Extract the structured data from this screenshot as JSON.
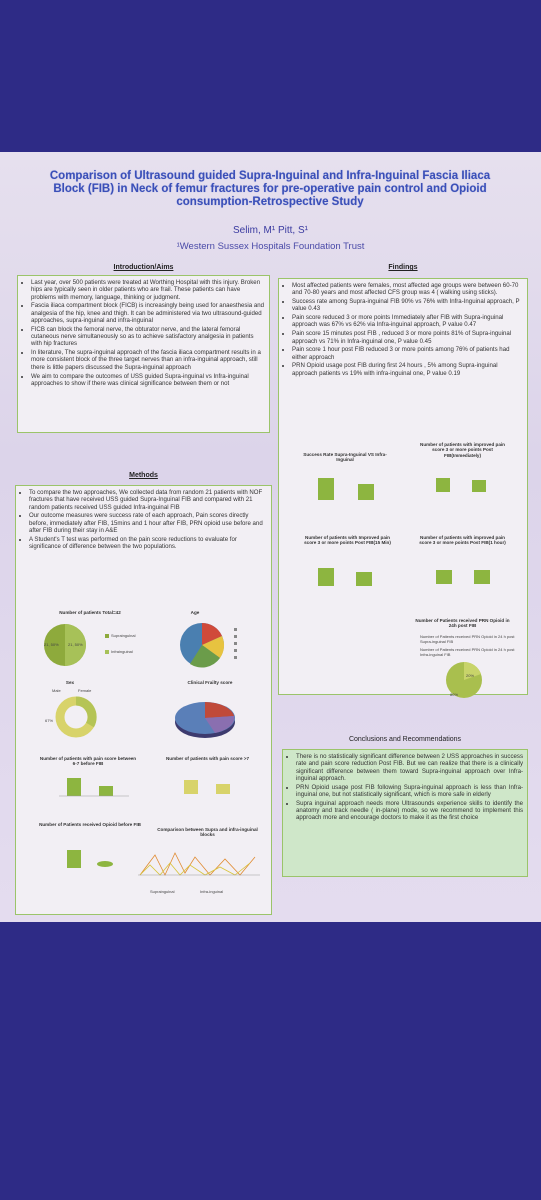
{
  "header": {
    "title": "Comparison of Ultrasound guided Supra-Inguinal and Infra-Inguinal Fascia Iliaca Block (FIB) in Neck of femur fractures for pre-operative pain control and Opioid consumption-Retrospective Study",
    "authors": "Selim, M¹ Pitt, S¹",
    "affiliation": "¹Western Sussex Hospitals Foundation Trust"
  },
  "introduction": {
    "heading": "Introduction/Aims",
    "bullets": [
      "Last year, over 500 patients were treated at Worthing Hospital with this injury. Broken hips are typically seen in older patients who are frail. These patients can have problems with memory, language, thinking or judgment.",
      "Fascia iliaca compartment block (FICB) is increasingly being used for anaesthesia and analgesia of the hip, knee and thigh. It can be administered via two ultrasound-guided approaches, supra-inguinal and infra-inguinal",
      "FICB can block the femoral nerve, the obturator nerve, and the lateral femoral cutaneous nerve simultaneously so as to achieve satisfactory analgesia in patients with hip fractures",
      "In literature, The supra-inguinal approach of the fascia iliaca compartment results in a more consistent block of the three target nerves than an infra-inguinal approach, still there is little papers discussed the Supra-inguinal approach",
      "We aim to compare the outcomes of USS guided Supra-inguinal vs Infra-inguinal approaches to show if there was clinical significance between them or not"
    ]
  },
  "methods": {
    "heading": "Methods",
    "bullets": [
      "To compare the two approaches, We collected data from random 21 patients with NOF fractures that have received USS guided Supra-Inguinal FIB and compared with 21 random patients received USS guided Infra-inguinal FIB",
      "Our outcome measures were success rate of each approach, Pain scores directly before, immediately after FIB, 15mins and 1 hour after FIB, PRN opioid use before and after FIB during their stay in A&E",
      "A Student's T test was performed on the pain score reductions to evaluate for significance of difference between the two populations."
    ],
    "charts": {
      "patients": {
        "title": "Number of patients Total=42",
        "labels": [
          "21, 50%",
          "21, 50%"
        ],
        "legend": [
          "Supraingulnal",
          "Infrainguinal"
        ]
      },
      "age": {
        "title": "Age"
      },
      "sex": {
        "title": "Sex",
        "legend": [
          "Male",
          "Female"
        ],
        "label": "67%"
      },
      "frailty": {
        "title": "Clinical Frailty score"
      },
      "pain67": {
        "title": "Number of patients with pain score between 6-7 before FIB"
      },
      "pain7": {
        "title": "Number of patients with pain score >7"
      },
      "opioid": {
        "title": "Number of Patients received Opioid before FIB"
      },
      "comparison": {
        "title": "Comparison between Supra and infra-inguinal blocks",
        "legend": [
          "Supraingulnal",
          "Infra-inguinal"
        ]
      }
    }
  },
  "findings": {
    "heading": "Findings",
    "bullets": [
      "Most affected patients were females, most affected age groups were between 60-70 and 70-80 years and most affected CFS group was 4 ( walking using sticks).",
      "Success rate among Supra-inguinal FIB 90% vs 76% with Infra-Inguinal approach, P value 0.43",
      "Pain score reduced 3 or more points Immediately after FIB with Supra-inguinal approach was 67% vs 62% via Infra-inguinal approach, P value 0.47",
      "Pain score 15 minutes post FIB , reduced 3 or more points 81% of Supra-inguinal approach vs 71% in Infra-inguinal one, P value 0.45",
      "Pain score 1 hour post FIB reduced 3 or more points among 76% of patients had either approach",
      "PRN Opioid usage post FIB during first 24 hours , 5% among Supra-inguinal approach patients vs 19% with infra-inguinal one, P value 0.19"
    ],
    "charts": {
      "success": {
        "title": "Success Rate Supra-Inguinal VS Infra-Inguinal"
      },
      "immediate": {
        "title": "Number of patients with improved pain score 3 or more points Post FIB(Immediately)"
      },
      "min15": {
        "title": "Number of patients with Improved pain score 3 or more points Post FIB(15 Min)"
      },
      "hour1": {
        "title": "Number of patients with improved pain score 3 or more points Post FIB(1 hour)"
      },
      "prn": {
        "title": "Number of Patients received PRN Opioid in 24h post FIB",
        "legend": [
          "Number of Patients received PRN Opioid in 24 h post Supra-inguinal FIB",
          "Number of Patients received PRN Opioid in 24 h post Infra-inguinal FIB"
        ],
        "labels": [
          "20%",
          "80%"
        ]
      }
    }
  },
  "conclusions": {
    "heading": "Conclusions and Recommendations",
    "bullets": [
      "There is no statistically significant difference between 2 USS approaches in success rate and pain score reduction Post FIB. But we can realize that there is a clinically significant difference between them toward Supra-inguinal approach over Infra-inguinal approach.",
      "PRN Opioid usage post FIB following Supra-inguinal approach is less than Infra-inguinal one, but not statistically significant, which is more safe in elderly",
      "Supra inguinal approach needs more Ultrasounds experience skills to identify the anatomy and track needle ( in-plane) mode, so we recommend to implement this approach more and encourage doctors to make it as the first choice"
    ]
  }
}
